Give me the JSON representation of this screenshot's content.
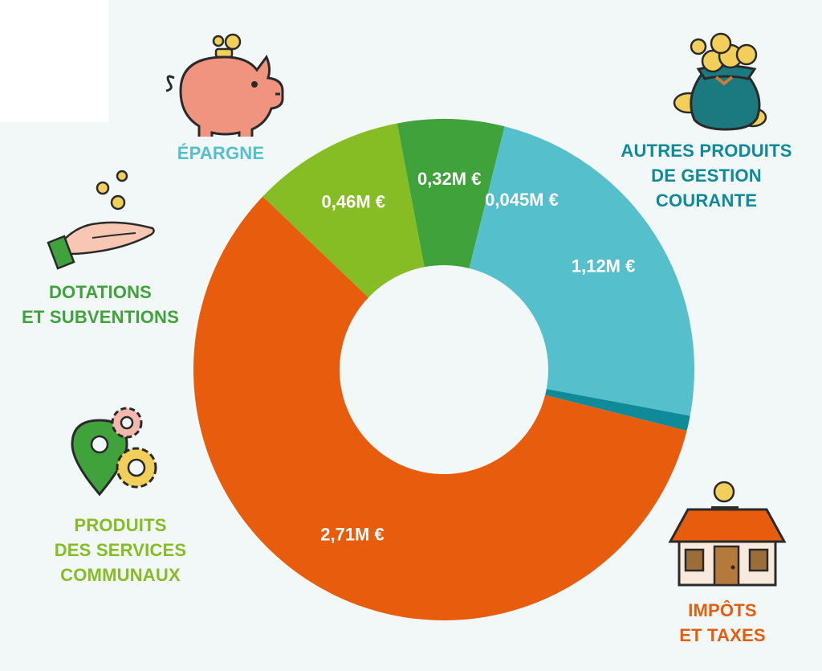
{
  "chart_data": {
    "type": "pie",
    "series": [
      {
        "name": "ÉPARGNE",
        "value": 1.12,
        "value_label": "1,12M €",
        "color": "#55bfcc"
      },
      {
        "name": "AUTRES PRODUITS\nDE GESTION\nCOURANTE",
        "value": 0.045,
        "value_label": "0,045M €",
        "color": "#0e8a99"
      },
      {
        "name": "IMPÔTS\nET TAXES",
        "value": 2.71,
        "value_label": "2,71M €",
        "color": "#e85c0e"
      },
      {
        "name": "PRODUITS\nDES SERVICES\nCOMMUNAUX",
        "value": 0.46,
        "value_label": "0,46M €",
        "color": "#86bc24"
      },
      {
        "name": "DOTATIONS\nET SUBVENTIONS",
        "value": 0.32,
        "value_label": "0,32M €",
        "color": "#3fa23a"
      }
    ]
  },
  "colors": {
    "background": "#f2f8f8",
    "label_epargne": "#55bfcc",
    "label_autres": "#0e8a99",
    "label_impots": "#e85c0e",
    "label_produits": "#86bc24",
    "label_dotations": "#3fa23a"
  },
  "icons": [
    "piggy-bank-icon",
    "money-bag-icon",
    "hand-coins-icon",
    "map-pin-gears-icon",
    "house-coin-icon"
  ]
}
